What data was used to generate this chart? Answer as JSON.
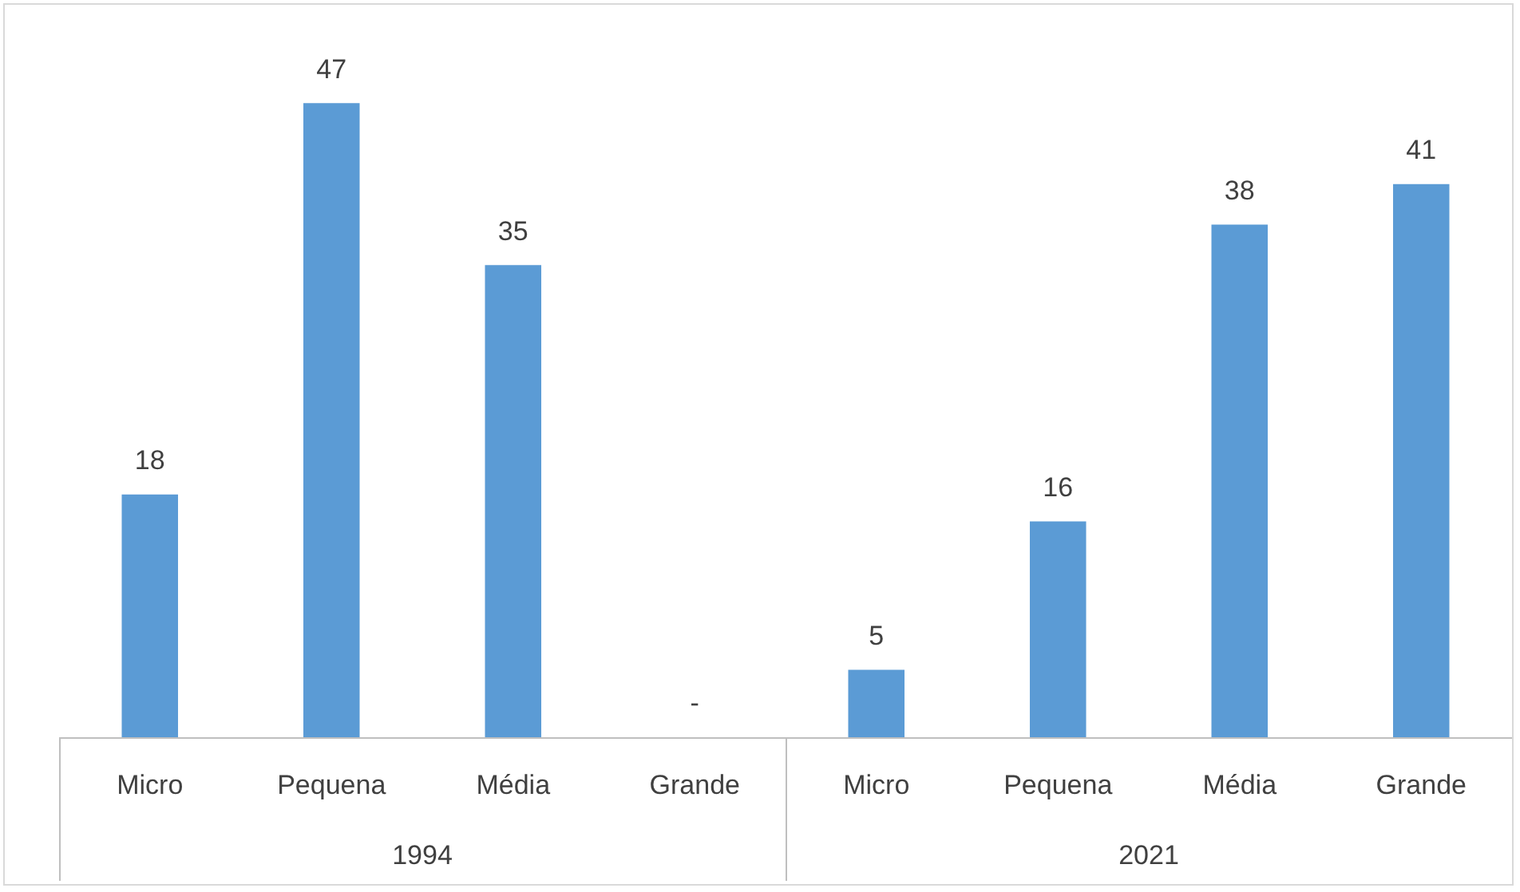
{
  "chart_data": {
    "type": "bar",
    "categories": [
      "Micro",
      "Pequena",
      "Média",
      "Grande",
      "Micro",
      "Pequena",
      "Média",
      "Grande"
    ],
    "values": [
      18,
      47,
      35,
      null,
      5,
      16,
      38,
      41
    ],
    "value_labels": [
      "18",
      "47",
      "35",
      "-",
      "5",
      "16",
      "38",
      "41"
    ],
    "color": "#5b9bd5",
    "annotations": [
      "1994",
      "2021"
    ],
    "legend": false
  }
}
